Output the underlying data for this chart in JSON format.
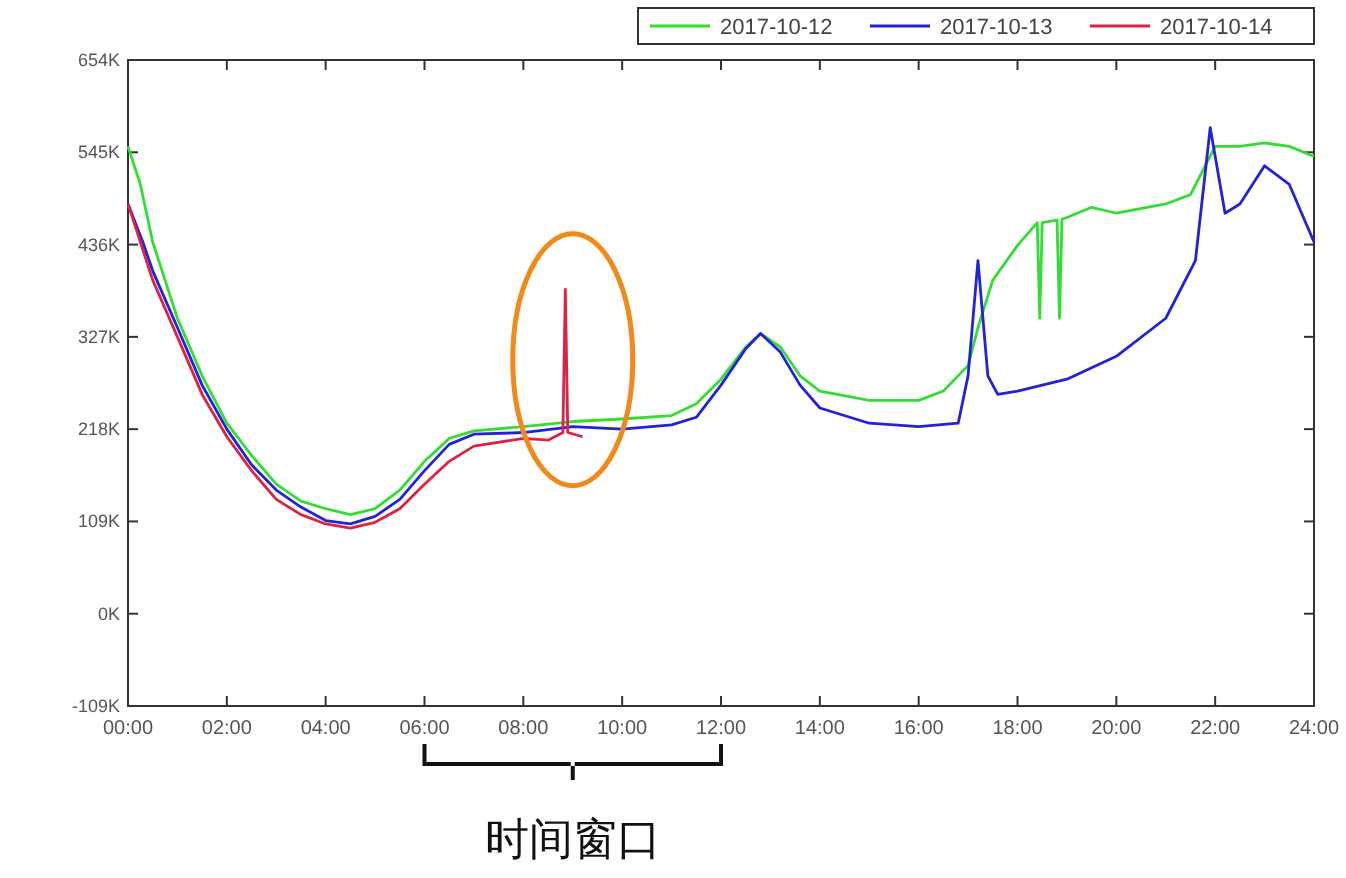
{
  "chart_data": {
    "type": "line",
    "legend": "top right",
    "xlim": [
      0,
      24
    ],
    "xticks": [
      {
        "value": 0,
        "label": "00:00"
      },
      {
        "value": 2,
        "label": "02:00"
      },
      {
        "value": 4,
        "label": "04:00"
      },
      {
        "value": 6,
        "label": "06:00"
      },
      {
        "value": 8,
        "label": "08:00"
      },
      {
        "value": 10,
        "label": "10:00"
      },
      {
        "value": 12,
        "label": "12:00"
      },
      {
        "value": 14,
        "label": "14:00"
      },
      {
        "value": 16,
        "label": "16:00"
      },
      {
        "value": 18,
        "label": "18:00"
      },
      {
        "value": 20,
        "label": "20:00"
      },
      {
        "value": 22,
        "label": "22:00"
      },
      {
        "value": 24,
        "label": "24:00"
      }
    ],
    "ylim": [
      -109000,
      654000
    ],
    "yticks": [
      {
        "value": -109000,
        "label": "-109K"
      },
      {
        "value": 0,
        "label": "0K"
      },
      {
        "value": 109000,
        "label": "109K"
      },
      {
        "value": 218000,
        "label": "218K"
      },
      {
        "value": 327000,
        "label": "327K"
      },
      {
        "value": 436000,
        "label": "436K"
      },
      {
        "value": 545000,
        "label": "545K"
      },
      {
        "value": 654000,
        "label": "654K"
      }
    ],
    "series": [
      {
        "name": "2017-10-12",
        "color": "#33dd33",
        "x": [
          0,
          0.25,
          0.5,
          1,
          1.5,
          2,
          2.5,
          3,
          3.5,
          4,
          4.5,
          5,
          5.5,
          6,
          6.5,
          7,
          8,
          9,
          10,
          11,
          11.5,
          12,
          12.5,
          12.8,
          13.2,
          13.6,
          14,
          15,
          16,
          16.5,
          17,
          17.2,
          17.5,
          18,
          18.4,
          18.45,
          18.5,
          18.8,
          18.85,
          18.9,
          19,
          19.5,
          20,
          21,
          21.5,
          22,
          22.5,
          23,
          23.5,
          24
        ],
        "values": [
          552000,
          507000,
          439000,
          349000,
          281000,
          225000,
          187000,
          153000,
          133000,
          124000,
          117000,
          124000,
          146000,
          180000,
          207000,
          216000,
          221000,
          227000,
          230000,
          234000,
          248000,
          277000,
          315000,
          331000,
          315000,
          281000,
          263000,
          252000,
          252000,
          263000,
          293000,
          338000,
          394000,
          435000,
          462000,
          349000,
          462000,
          465000,
          349000,
          466000,
          468000,
          480000,
          473000,
          484000,
          495000,
          552000,
          552000,
          556000,
          552000,
          540000
        ]
      },
      {
        "name": "2017-10-13",
        "color": "#2222dd",
        "x": [
          0,
          0.3,
          0.5,
          1,
          1.5,
          2,
          2.5,
          3,
          3.5,
          4,
          4.5,
          5,
          5.5,
          6,
          6.5,
          7,
          8,
          9,
          10,
          11,
          11.5,
          12,
          12.5,
          12.8,
          13.2,
          13.6,
          14,
          15,
          16,
          16.8,
          17,
          17.2,
          17.4,
          17.6,
          18,
          19,
          20,
          21,
          21.6,
          21.9,
          22.2,
          22.5,
          23,
          23.5,
          24
        ],
        "values": [
          484000,
          439000,
          405000,
          338000,
          270000,
          218000,
          176000,
          146000,
          126000,
          110000,
          106000,
          115000,
          135000,
          169000,
          200000,
          212000,
          214000,
          221000,
          218000,
          223000,
          232000,
          270000,
          313000,
          331000,
          309000,
          270000,
          243000,
          225000,
          221000,
          225000,
          281000,
          417000,
          281000,
          259000,
          263000,
          277000,
          304000,
          349000,
          417000,
          574000,
          473000,
          484000,
          529000,
          507000,
          439000
        ]
      },
      {
        "name": "2017-10-14",
        "color": "#dd2244",
        "x": [
          0,
          0.5,
          1,
          1.5,
          2,
          2.5,
          3,
          3.5,
          4,
          4.5,
          5,
          5.5,
          6,
          6.5,
          7,
          8,
          8.5,
          8.8,
          8.85,
          8.9,
          9.2
        ],
        "values": [
          484000,
          394000,
          327000,
          259000,
          209000,
          169000,
          135000,
          117000,
          106000,
          101000,
          108000,
          124000,
          153000,
          180000,
          198000,
          207000,
          205000,
          214000,
          383000,
          214000,
          209000
        ]
      }
    ],
    "annotations": [
      "时间窗口"
    ]
  }
}
